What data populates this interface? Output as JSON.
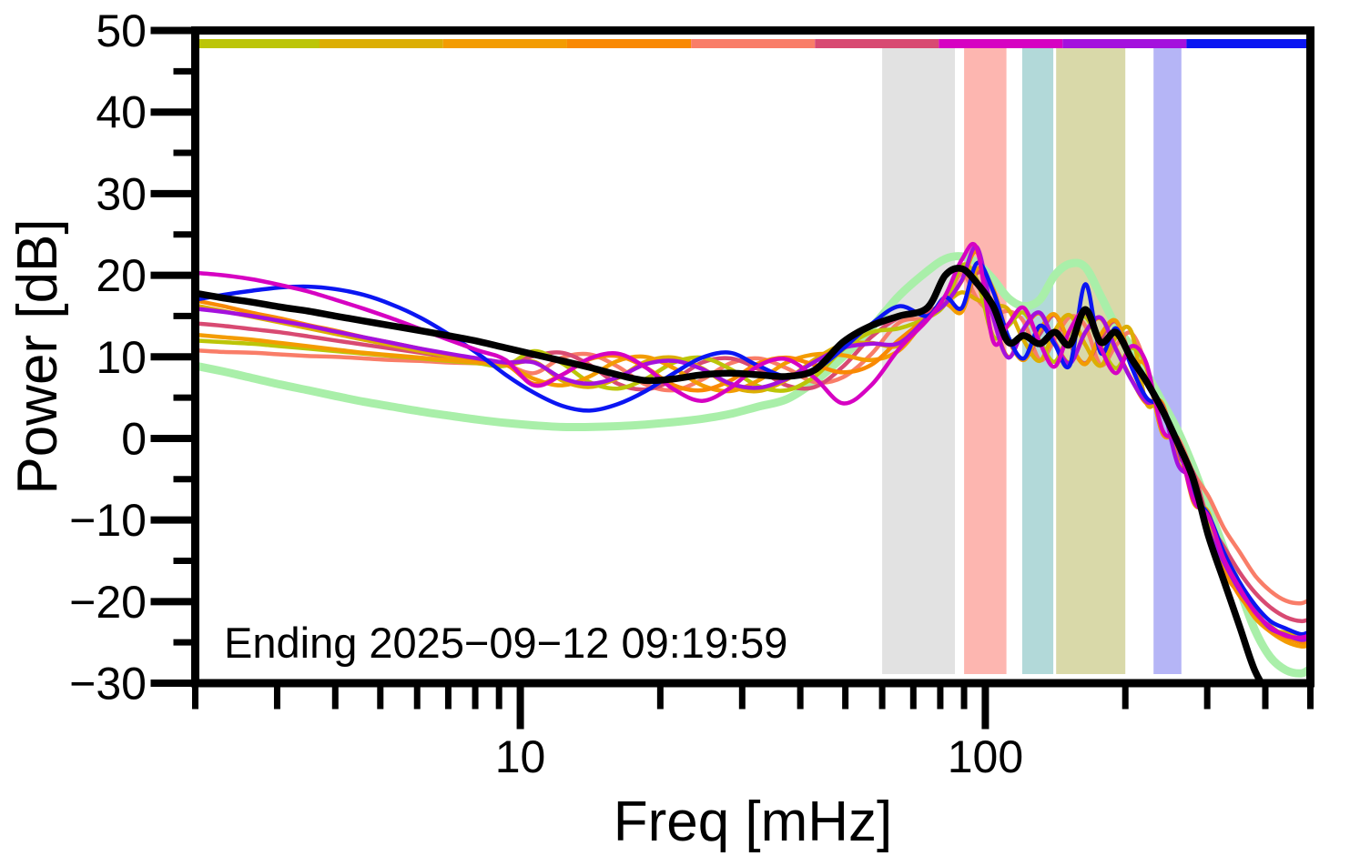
{
  "annotation": {
    "text": "Ending 2025−09−12 09:19:59"
  },
  "axes": {
    "x": {
      "label": "Freq [mHz]",
      "scale": "log",
      "min": 2,
      "max": 500,
      "major_ticks": [
        {
          "value": 10,
          "label": "10"
        },
        {
          "value": 100,
          "label": "100"
        }
      ],
      "minor_ticks": [
        2,
        3,
        4,
        5,
        6,
        7,
        8,
        9,
        20,
        30,
        40,
        50,
        60,
        70,
        80,
        90,
        200,
        300,
        400,
        500
      ]
    },
    "y": {
      "label": "Power [dB]",
      "min": -30,
      "max": 50,
      "major_ticks": [
        {
          "value": 50,
          "label": "50"
        },
        {
          "value": 40,
          "label": "40"
        },
        {
          "value": 30,
          "label": "30"
        },
        {
          "value": 20,
          "label": "20"
        },
        {
          "value": 10,
          "label": "10"
        },
        {
          "value": 0,
          "label": "0"
        },
        {
          "value": -10,
          "label": "−10"
        },
        {
          "value": -20,
          "label": "−20"
        },
        {
          "value": -30,
          "label": "−30"
        }
      ],
      "minor_ticks": [
        45,
        35,
        25,
        15,
        5,
        -5,
        -15,
        -25
      ]
    }
  },
  "top_strip": {
    "description": "frequency-band color strip along top of plot",
    "segments": [
      {
        "from": 2,
        "to": 3.7,
        "color": "#bcc508"
      },
      {
        "from": 3.7,
        "to": 6.82,
        "color": "#dcae04"
      },
      {
        "from": 6.82,
        "to": 12.6,
        "color": "#f39c02"
      },
      {
        "from": 12.6,
        "to": 23.3,
        "color": "#f98903"
      },
      {
        "from": 23.3,
        "to": 43.0,
        "color": "#f97d68"
      },
      {
        "from": 43.0,
        "to": 79.4,
        "color": "#d84a72"
      },
      {
        "from": 79.4,
        "to": 146.6,
        "color": "#d602c2"
      },
      {
        "from": 146.6,
        "to": 270.7,
        "color": "#a411dd"
      },
      {
        "from": 270.7,
        "to": 500,
        "color": "#0b16f2"
      }
    ]
  },
  "shaded_bands": [
    {
      "from": 60,
      "to": 86,
      "color": "#e2e2e2"
    },
    {
      "from": 90,
      "to": 111,
      "color": "#fdb6b0"
    },
    {
      "from": 120,
      "to": 140,
      "color": "#b2d9d9"
    },
    {
      "from": 142,
      "to": 200,
      "color": "#d9d9a9"
    },
    {
      "from": 230,
      "to": 264,
      "color": "#b5b5f6"
    }
  ],
  "chart_data": {
    "type": "line",
    "title": "",
    "xlabel": "Freq [mHz]",
    "ylabel": "Power [dB]",
    "xscale": "log",
    "xlim": [
      2,
      500
    ],
    "ylim": [
      -30,
      50
    ],
    "grid": false,
    "legend": false,
    "x": [
      2,
      2.3,
      2.65,
      3.05,
      3.5,
      4,
      4.6,
      5.3,
      6.1,
      7,
      8.1,
      9.3,
      10.7,
      12.3,
      14.1,
      16.2,
      18.6,
      21.4,
      24.6,
      28.3,
      32.5,
      37.4,
      43,
      49.4,
      56.8,
      65.3,
      75,
      82,
      89,
      96,
      104,
      112,
      121,
      131,
      141,
      152,
      164,
      177,
      191,
      206,
      222,
      240,
      259,
      280,
      302,
      326,
      352,
      380,
      410,
      443,
      478,
      500
    ],
    "series": [
      {
        "name": "green-reference",
        "color": "#a9efa9",
        "width": 9,
        "values": [
          8.9,
          8.2,
          7.4,
          6.6,
          5.9,
          5.2,
          4.5,
          3.9,
          3.3,
          2.8,
          2.3,
          1.9,
          1.6,
          1.4,
          1.4,
          1.5,
          1.7,
          2,
          2.4,
          3,
          3.9,
          4.8,
          7,
          10,
          13.5,
          17.5,
          20.5,
          22,
          22.3,
          21.5,
          19.5,
          17.2,
          16.2,
          17,
          20,
          21.4,
          21,
          17.5,
          13.8,
          11.2,
          8,
          4.5,
          1,
          -3.5,
          -8.5,
          -13.5,
          -18.5,
          -23.5,
          -26.8,
          -28.4,
          -28.8,
          -28.2
        ]
      },
      {
        "name": "salmon",
        "color": "#f97d68",
        "width": 4.5,
        "values": [
          10.8,
          10.6,
          10.5,
          10.3,
          10.1,
          10,
          9.8,
          9.6,
          9.5,
          9.3,
          9.2,
          9,
          8,
          9.9,
          10.3,
          8.8,
          6.6,
          5.9,
          7.2,
          9.2,
          9.8,
          8.6,
          6.9,
          7.5,
          10.3,
          14.2,
          14.8,
          16.5,
          20.2,
          17.1,
          15.3,
          15.6,
          14.3,
          9.6,
          12.2,
          14.9,
          13.8,
          9,
          11.4,
          12.9,
          8.7,
          0.7,
          0.1,
          -4.2,
          -7.1,
          -11,
          -13.9,
          -16.8,
          -18.7,
          -19.9,
          -20.2,
          -19.7
        ]
      },
      {
        "name": "rose",
        "color": "#d84a72",
        "width": 4.5,
        "values": [
          14.1,
          13.8,
          13.4,
          13,
          12.5,
          12,
          11.5,
          11,
          10.5,
          10,
          9.6,
          9.2,
          10.1,
          10.5,
          9,
          6.7,
          6,
          7.2,
          9.3,
          9.8,
          8.5,
          6.5,
          6.3,
          8.8,
          12.4,
          14.8,
          15.5,
          16.5,
          15.6,
          20.3,
          18.2,
          12.2,
          9.7,
          12.8,
          15.1,
          11.5,
          9.2,
          12.2,
          14.3,
          9.5,
          4.3,
          4.3,
          -1.9,
          -4.2,
          -10.1,
          -13.3,
          -16.4,
          -18.9,
          -20.7,
          -21.9,
          -22.4,
          -22.1
        ]
      },
      {
        "name": "gold",
        "color": "#dcae04",
        "width": 4.5,
        "values": [
          16.3,
          15.6,
          14.9,
          14.2,
          13.5,
          12.8,
          12.1,
          11.4,
          10.7,
          10.1,
          9.5,
          9,
          9.4,
          7.1,
          6.3,
          7.4,
          9.4,
          9.9,
          8.6,
          6.4,
          5.8,
          7.2,
          9.7,
          11.5,
          11.7,
          11.4,
          14.8,
          16.5,
          17.9,
          17,
          16.3,
          15.8,
          12,
          9.5,
          13.2,
          15.1,
          11.5,
          8.9,
          12.4,
          13.1,
          4.3,
          4.3,
          -2.9,
          -5,
          -11.1,
          -15.3,
          -18.9,
          -21,
          -23.4,
          -23.8,
          -24.6,
          -24.4
        ]
      },
      {
        "name": "yellow-green",
        "color": "#bcc508",
        "width": 4.5,
        "values": [
          12,
          11.8,
          11.6,
          11.3,
          11,
          10.7,
          10.4,
          10.1,
          9.8,
          9.5,
          9.2,
          8.9,
          10.7,
          9.2,
          6.9,
          6.1,
          7.3,
          9.3,
          9.9,
          8.5,
          6.4,
          5.9,
          7.6,
          10.9,
          13,
          13.5,
          14.8,
          16.5,
          21.2,
          19.4,
          12.5,
          13.8,
          15.4,
          11.9,
          9.4,
          13.1,
          14.9,
          11.3,
          8.6,
          11.1,
          8.7,
          0.7,
          -0.1,
          -7,
          -9.9,
          -15,
          -18.2,
          -21.6,
          -23,
          -24.3,
          -24.8,
          -24.6
        ]
      },
      {
        "name": "orange",
        "color": "#f39c02",
        "width": 4.5,
        "values": [
          12.7,
          12.4,
          12.1,
          11.7,
          11.3,
          10.9,
          10.5,
          10.2,
          9.9,
          9.6,
          9.3,
          9,
          7.3,
          6.5,
          7.6,
          9.5,
          10,
          8.6,
          6.5,
          5.8,
          7.1,
          9.3,
          10.3,
          10.2,
          9.6,
          10.8,
          14.8,
          16.5,
          15.5,
          20.8,
          18.3,
          12.4,
          9.6,
          13.3,
          15.2,
          11.7,
          9.1,
          12.7,
          14.4,
          9.7,
          8.7,
          0.7,
          -0.1,
          -7.8,
          -9.1,
          -16.2,
          -19.1,
          -22,
          -23.7,
          -24.9,
          -25.5,
          -25.3
        ]
      },
      {
        "name": "dark-orange",
        "color": "#f98903",
        "width": 4.5,
        "values": [
          16.9,
          16.2,
          15.4,
          14.7,
          13.9,
          13.2,
          12.4,
          11.7,
          11,
          10.3,
          9.7,
          9.1,
          6.7,
          7.8,
          9.7,
          10.1,
          8.7,
          6.5,
          5.9,
          7.1,
          9.2,
          9.9,
          9,
          8.1,
          9,
          12.1,
          14.8,
          16.5,
          19.3,
          22.8,
          14.9,
          10,
          13.4,
          15.3,
          11.8,
          9.3,
          12.9,
          14.7,
          11,
          7.3,
          4.3,
          4.3,
          -2.9,
          -5,
          -11.7,
          -15.9,
          -19.3,
          -21.5,
          -23.6,
          -24.4,
          -25,
          -24.8
        ]
      },
      {
        "name": "purple",
        "color": "#a411dd",
        "width": 4.5,
        "values": [
          15.9,
          15.5,
          15,
          14.4,
          13.8,
          13.1,
          12.4,
          11.7,
          11,
          10.4,
          9.8,
          9.3,
          9.3,
          7.4,
          6.7,
          7.5,
          9.1,
          9.5,
          8.5,
          6.7,
          6.2,
          7.3,
          9.4,
          11.1,
          11.6,
          11.7,
          14.8,
          16.5,
          19.4,
          23.4,
          14.8,
          9.9,
          13.5,
          15.4,
          11.7,
          9.2,
          13,
          14.8,
          10.9,
          7.2,
          4.5,
          4,
          -3.1,
          -5.2,
          -11.3,
          -15.2,
          -18.6,
          -21.2,
          -23.3,
          -24.1,
          -24.7,
          -24.4
        ]
      },
      {
        "name": "blue",
        "color": "#0b16f2",
        "width": 4.5,
        "values": [
          17,
          17.6,
          18.1,
          18.5,
          18.6,
          18.3,
          17.6,
          16.4,
          14.8,
          12.8,
          10.4,
          7.8,
          5.6,
          4,
          3.4,
          4.2,
          5.8,
          8,
          9.9,
          10.5,
          8.9,
          7.6,
          8.4,
          11,
          14,
          16.2,
          15,
          17.3,
          16,
          21.5,
          18,
          12.5,
          9.8,
          13.8,
          11.5,
          9,
          18.9,
          10.5,
          13.5,
          8.8,
          5,
          3.8,
          -0.7,
          -6.8,
          -9.4,
          -14,
          -17.6,
          -20.4,
          -22.4,
          -23.3,
          -24,
          -23.6
        ]
      },
      {
        "name": "magenta",
        "color": "#d602c2",
        "width": 4.5,
        "values": [
          20.3,
          20,
          19.5,
          18.8,
          18,
          17,
          15.9,
          14.7,
          13.4,
          12.1,
          10.8,
          9.6,
          6.5,
          7.8,
          9.8,
          10.4,
          8.7,
          6,
          4.6,
          6.2,
          8.9,
          9.7,
          7.4,
          4.3,
          6.5,
          11,
          14.5,
          17.5,
          21.9,
          23.2,
          11.9,
          14,
          16,
          11.7,
          8.8,
          13.3,
          15.5,
          11.1,
          8,
          11.3,
          9.2,
          1.1,
          -0.5,
          -7.5,
          -9.6,
          -14.8,
          -18.3,
          -21.3,
          -23.1,
          -24.2,
          -24.4,
          -24.1
        ]
      },
      {
        "name": "mean-black",
        "color": "#000000",
        "width": 7.5,
        "values": [
          17.8,
          17.2,
          16.7,
          16.1,
          15.6,
          15,
          14.4,
          13.8,
          13.2,
          12.6,
          11.9,
          11.1,
          10.3,
          9.5,
          8.7,
          7.8,
          7.1,
          7.3,
          7.8,
          8,
          7.8,
          7.6,
          8.4,
          11.8,
          13.8,
          15,
          16,
          20,
          20.8,
          19,
          16.2,
          11.8,
          12.6,
          11.6,
          13,
          11.5,
          15.8,
          11.8,
          13,
          9.8,
          7,
          3.5,
          -0.5,
          -5,
          -12,
          -17.5,
          -23,
          -28.5,
          -31.5,
          -33,
          -34,
          -34.5
        ]
      }
    ]
  }
}
